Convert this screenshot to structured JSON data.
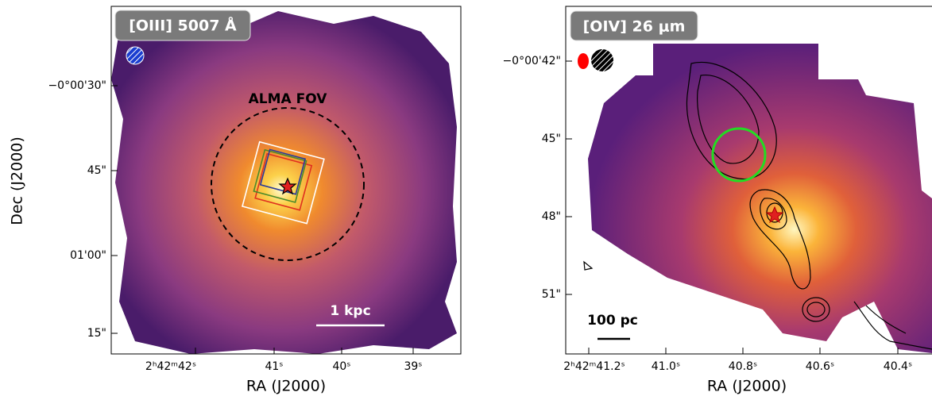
{
  "panels": [
    {
      "label": "[OIII] 5007 Å",
      "annotations": [
        "ALMA FOV",
        "1 kpc"
      ],
      "x_axis_label": "RA (J2000)",
      "y_axis_label": "Dec (J2000)",
      "xticks": [
        "2ʰ42ᵐ42ˢ",
        "41ˢ",
        "40ˢ",
        "39ˢ"
      ],
      "yticks": [
        "−0°00'30\"",
        "45\"",
        "01'00\"",
        "15\""
      ]
    },
    {
      "label": "[OIV] 26 μm",
      "annotations": [
        "100 pc"
      ],
      "x_axis_label": "RA (J2000)",
      "xticks": [
        "2ʰ42ᵐ41.2ˢ",
        "41.0ˢ",
        "40.8ˢ",
        "40.6ˢ",
        "40.4ˢ"
      ],
      "yticks": [
        "−0°00'42\"",
        "45\"",
        "48\"",
        "51\""
      ]
    }
  ]
}
